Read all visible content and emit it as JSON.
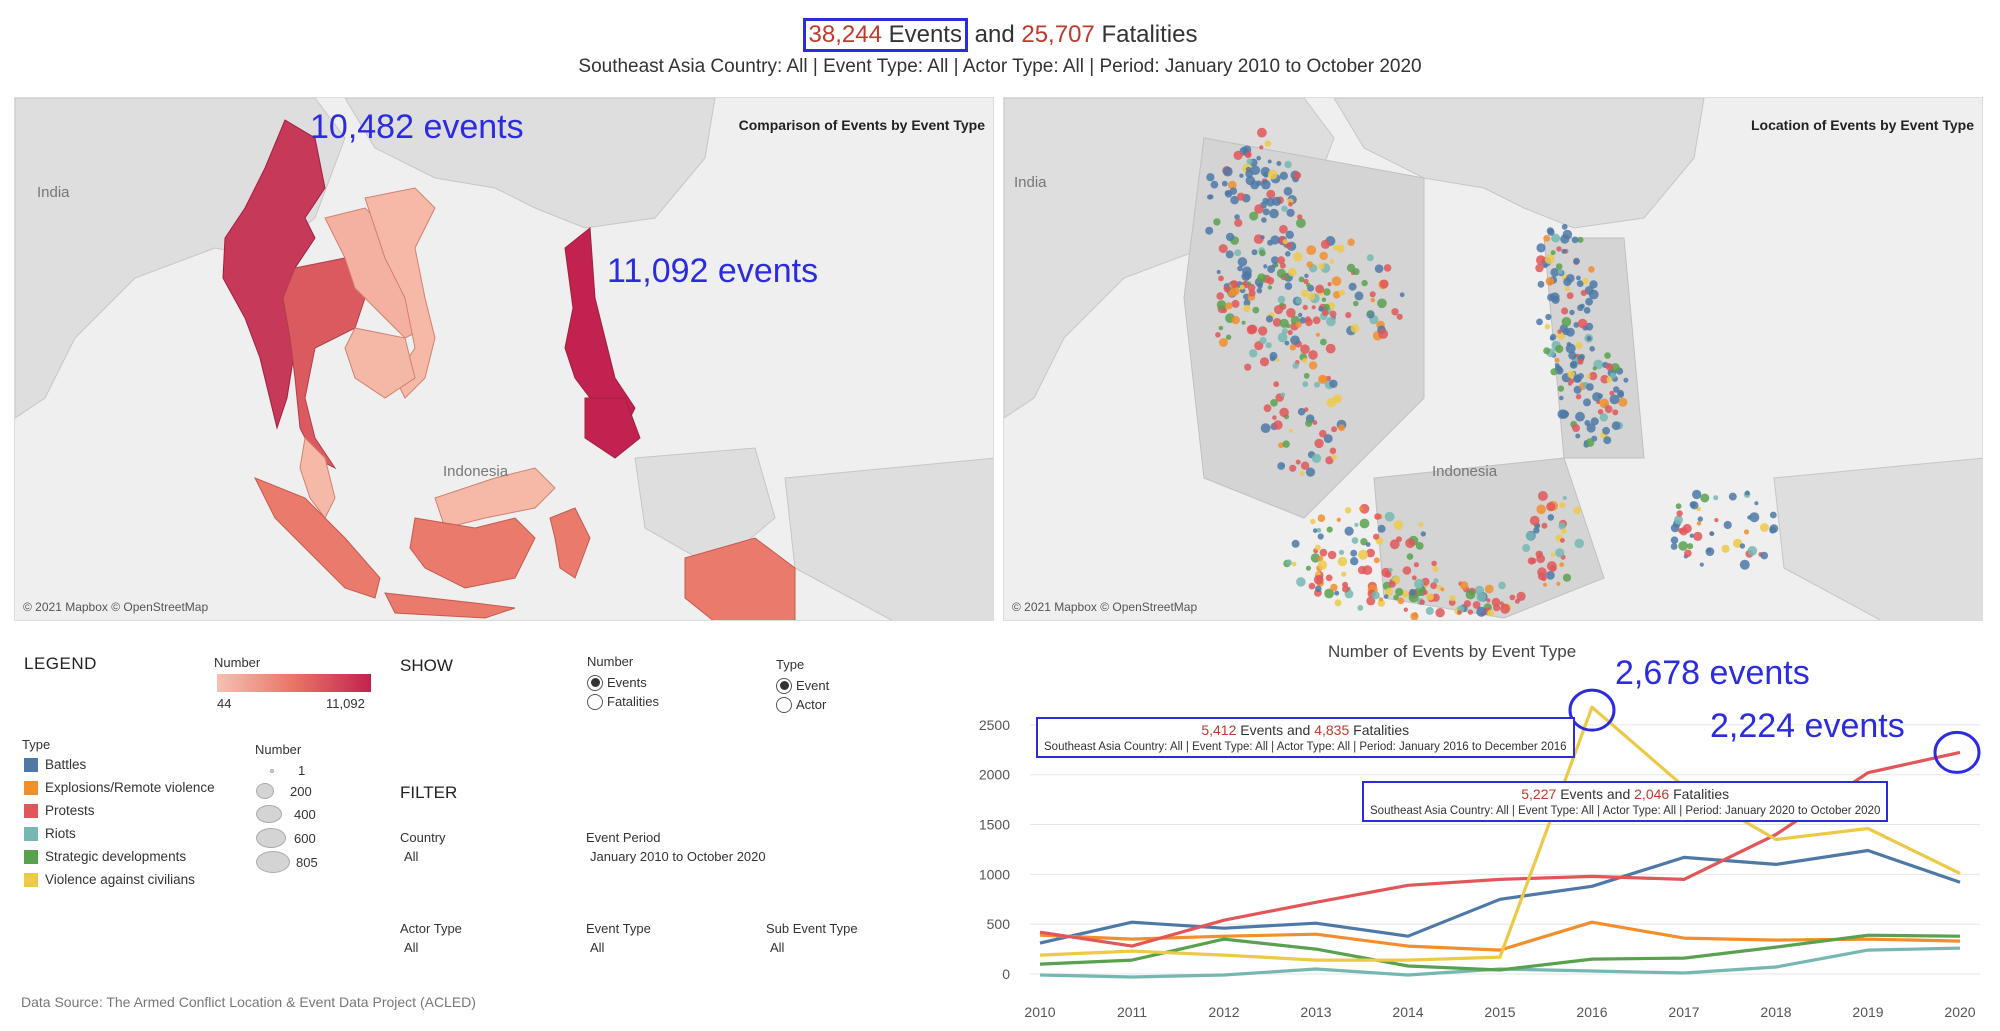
{
  "header": {
    "events_count": "38,244",
    "events_word": "Events",
    "and_word": "and",
    "fatalities_count": "25,707",
    "fatalities_word": "Fatalities",
    "subtitle": "Southeast Asia Country: All | Event Type: All | Actor Type: All | Period: January 2010 to October 2020"
  },
  "map_left": {
    "title": "Comparison of Events by Event Type",
    "credit": "© 2021 Mapbox © OpenStreetMap",
    "label_india": "India",
    "label_indonesia": "Indonesia",
    "annotation_myanmar": "10,482 events",
    "annotation_philippines": "11,092 events"
  },
  "map_right": {
    "title": "Location of Events by Event Type",
    "credit": "© 2021 Mapbox © OpenStreetMap",
    "label_india": "India",
    "label_indonesia": "Indonesia"
  },
  "legend": {
    "title": "LEGEND",
    "gradient": {
      "title": "Number",
      "min": "44",
      "max": "11,092",
      "colors": [
        "#f6c1b3",
        "#e87566",
        "#c2224f"
      ]
    },
    "type_title": "Type",
    "types": [
      {
        "label": "Battles",
        "color": "#4e79a7"
      },
      {
        "label": "Explosions/Remote violence",
        "color": "#f28e2b"
      },
      {
        "label": "Protests",
        "color": "#e15759"
      },
      {
        "label": "Riots",
        "color": "#76b7b2"
      },
      {
        "label": "Strategic developments",
        "color": "#59a14f"
      },
      {
        "label": "Violence against civilians",
        "color": "#edc948"
      }
    ],
    "size_title": "Number",
    "sizes": [
      "1",
      "200",
      "400",
      "600",
      "805"
    ]
  },
  "show": {
    "title": "SHOW",
    "number_group": {
      "title": "Number",
      "options": [
        "Events",
        "Fatalities"
      ],
      "selected": "Events"
    },
    "type_group": {
      "title": "Type",
      "options": [
        "Event",
        "Actor"
      ],
      "selected": "Event"
    }
  },
  "filter": {
    "title": "FILTER",
    "country": {
      "label": "Country",
      "value": "All"
    },
    "event_period": {
      "label": "Event Period",
      "value": "January 2010 to October 2020"
    },
    "actor_type": {
      "label": "Actor Type",
      "value": "All"
    },
    "event_type": {
      "label": "Event Type",
      "value": "All"
    },
    "sub_event_type": {
      "label": "Sub Event Type",
      "value": "All"
    }
  },
  "data_source": "Data Source: The Armed Conflict Location & Event Data Project (ACLED)",
  "annotations": {
    "peak_2016": "2,678 events",
    "end_2020": "2,224 events"
  },
  "tooltips": [
    {
      "events": "5,412",
      "fatalities": "4,835",
      "events_word": "Events and",
      "fatalities_word": "Fatalities",
      "detail": "Southeast Asia Country: All | Event Type: All | Actor Type: All | Period: January 2016 to December 2016"
    },
    {
      "events": "5,227",
      "fatalities": "2,046",
      "events_word": "Events and",
      "fatalities_word": "Fatalities",
      "detail": "Southeast Asia Country: All | Event Type: All | Actor Type: All | Period: January 2020 to October 2020"
    }
  ],
  "chart_data": {
    "type": "line",
    "title": "Number of Events by Event Type",
    "xlabel": "",
    "ylabel": "",
    "x": [
      2010,
      2011,
      2012,
      2013,
      2014,
      2015,
      2016,
      2017,
      2018,
      2019,
      2020
    ],
    "yticks": [
      0,
      500,
      1000,
      1500,
      2000,
      2500
    ],
    "ylim": [
      -60,
      2750
    ],
    "series": [
      {
        "name": "Battles",
        "color": "#4e79a7",
        "values": [
          310,
          520,
          460,
          510,
          380,
          750,
          880,
          1170,
          1100,
          1240,
          920
        ]
      },
      {
        "name": "Explosions/Remote violence",
        "color": "#f28e2b",
        "values": [
          390,
          350,
          380,
          400,
          280,
          240,
          520,
          360,
          340,
          350,
          330
        ]
      },
      {
        "name": "Protests",
        "color": "#e15759",
        "values": [
          420,
          280,
          540,
          720,
          890,
          950,
          980,
          950,
          1400,
          2020,
          2224
        ]
      },
      {
        "name": "Riots",
        "color": "#76b7b2",
        "values": [
          -10,
          -30,
          -10,
          50,
          -10,
          50,
          30,
          10,
          70,
          240,
          260
        ]
      },
      {
        "name": "Strategic developments",
        "color": "#59a14f",
        "values": [
          100,
          140,
          350,
          250,
          80,
          40,
          150,
          160,
          270,
          390,
          380
        ]
      },
      {
        "name": "Violence against civilians",
        "color": "#edc948",
        "values": [
          190,
          230,
          190,
          140,
          140,
          170,
          2678,
          1880,
          1350,
          1460,
          1010
        ]
      }
    ]
  }
}
